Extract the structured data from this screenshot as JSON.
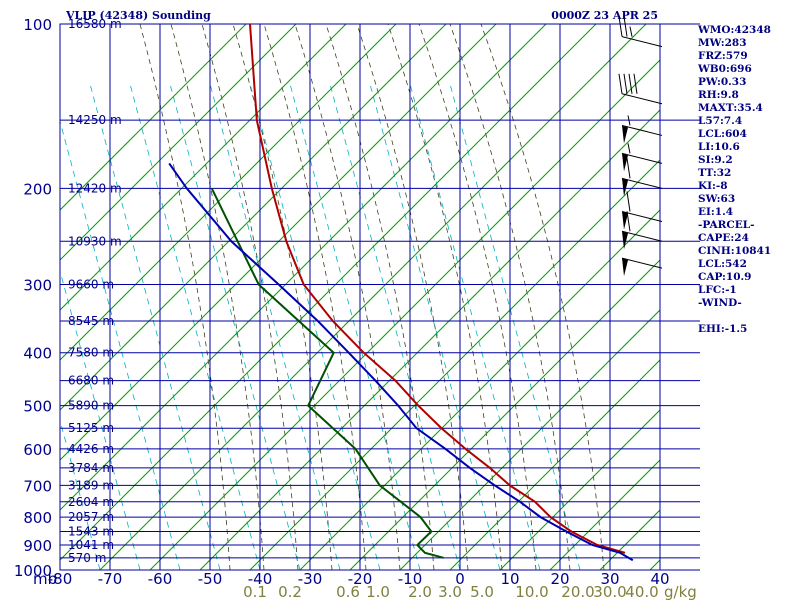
{
  "header": {
    "title": "VLIP (42348) Sounding",
    "time": "0000Z 23 APR 25"
  },
  "indices": [
    "WMO:42348",
    "MW:283",
    "FRZ:579",
    "WB0:696",
    "PW:0.33",
    "RH:9.8",
    "MAXT:35.4",
    "L57:7.4",
    "LCL:604",
    "LI:10.6",
    "SI:9.2",
    "TT:32",
    "KI:-8",
    "SW:63",
    "EI:1.4",
    "-PARCEL-",
    "CAPE:24",
    "CINH:10841",
    "LCL:542",
    "CAP:10.9",
    "LFC:-1",
    "-WIND-",
    "",
    "EHI:-1.5"
  ],
  "colors": {
    "background": "#ffffff",
    "grid": "#0000a0",
    "dry_adiabat": "#00a000",
    "moist_adiabat": "#404020",
    "mixing_ratio": "#00b0c0",
    "temperature": "#b00000",
    "dewpoint": "#005000",
    "parcel": "#0000b0",
    "axis_label": "#00008b",
    "mixing_label": "#808040",
    "barb": "#000000"
  },
  "chart_data": {
    "type": "line",
    "title": "VLIP (42348) Sounding",
    "xlabel": "",
    "ylabel": "mb",
    "temperature_ticks": [
      -80,
      -70,
      -60,
      -50,
      -40,
      -30,
      -20,
      -10,
      0,
      10,
      20,
      30,
      40
    ],
    "temperature_tick_labels": [
      "-80",
      "-70",
      "-60",
      "-50",
      "-40",
      "-30",
      "-20",
      "-10",
      "0",
      "10",
      "20",
      "30",
      "40"
    ],
    "pressure_ticks": [
      100,
      200,
      300,
      400,
      500,
      600,
      700,
      800,
      900,
      1000
    ],
    "pressure_tick_labels": [
      "100",
      "200",
      "300",
      "400",
      "500",
      "600",
      "700",
      "800",
      "900",
      "1000"
    ],
    "pressure_axis_unit": "mb",
    "pressure_scale": "log",
    "xlim": [
      -80,
      40
    ],
    "ylim": [
      1000,
      100
    ],
    "grid": true,
    "height_labels": [
      {
        "p": 100,
        "text": "16580 m"
      },
      {
        "p": 150,
        "text": "14250 m"
      },
      {
        "p": 200,
        "text": "12420 m"
      },
      {
        "p": 250,
        "text": "10930 m"
      },
      {
        "p": 300,
        "text": "9660 m"
      },
      {
        "p": 350,
        "text": "8545 m"
      },
      {
        "p": 400,
        "text": "7580 m"
      },
      {
        "p": 450,
        "text": "6680 m"
      },
      {
        "p": 500,
        "text": "5890 m"
      },
      {
        "p": 550,
        "text": "5125 m"
      },
      {
        "p": 600,
        "text": "4426 m"
      },
      {
        "p": 650,
        "text": "3784 m"
      },
      {
        "p": 700,
        "text": "3189 m"
      },
      {
        "p": 750,
        "text": "2604 m"
      },
      {
        "p": 800,
        "text": "2057 m"
      },
      {
        "p": 850,
        "text": "1543 m"
      },
      {
        "p": 900,
        "text": "1041 m"
      },
      {
        "p": 950,
        "text": "570 m"
      }
    ],
    "mixing_ratio_labels": [
      "0.1",
      "0.2",
      "0.6",
      "1.0",
      "2.0",
      "3.0",
      "5.0",
      "10.0",
      "20.0",
      "30.0",
      "40.0"
    ],
    "mixing_ratio_unit": "g/kg",
    "series": [
      {
        "key": "temperature",
        "points": [
          [
            930,
            32
          ],
          [
            900,
            26
          ],
          [
            850,
            20
          ],
          [
            800,
            15
          ],
          [
            750,
            11
          ],
          [
            700,
            5
          ],
          [
            650,
            0
          ],
          [
            600,
            -6
          ],
          [
            550,
            -12
          ],
          [
            500,
            -18
          ],
          [
            450,
            -24
          ],
          [
            400,
            -32
          ],
          [
            350,
            -40
          ],
          [
            300,
            -48
          ],
          [
            250,
            -54
          ],
          [
            200,
            -60
          ],
          [
            150,
            -67
          ],
          [
            100,
            -74
          ]
        ]
      },
      {
        "key": "dewpoint",
        "points": [
          [
            950,
            -4
          ],
          [
            930,
            -8
          ],
          [
            900,
            -10
          ],
          [
            850,
            -8
          ],
          [
            800,
            -11
          ],
          [
            700,
            -21
          ],
          [
            600,
            -28
          ],
          [
            500,
            -40
          ],
          [
            400,
            -38
          ],
          [
            300,
            -57
          ],
          [
            200,
            -72
          ]
        ]
      },
      {
        "key": "parcel",
        "points": [
          [
            960,
            34
          ],
          [
            930,
            31
          ],
          [
            900,
            25
          ],
          [
            850,
            19
          ],
          [
            800,
            13
          ],
          [
            750,
            8
          ],
          [
            700,
            2
          ],
          [
            650,
            -4
          ],
          [
            600,
            -10
          ],
          [
            550,
            -17
          ],
          [
            500,
            -22
          ],
          [
            450,
            -28
          ],
          [
            400,
            -35
          ],
          [
            350,
            -43
          ],
          [
            300,
            -53
          ],
          [
            250,
            -65
          ],
          [
            200,
            -77
          ],
          [
            180,
            -82
          ]
        ]
      }
    ],
    "wind_barbs": [
      {
        "p": 110,
        "speed": 25
      },
      {
        "p": 140,
        "speed": 40
      },
      {
        "p": 160,
        "speed": 55
      },
      {
        "p": 180,
        "speed": 55
      },
      {
        "p": 200,
        "speed": 60
      },
      {
        "p": 230,
        "speed": 60
      },
      {
        "p": 250,
        "speed": 60
      },
      {
        "p": 280,
        "speed": 50
      }
    ]
  }
}
